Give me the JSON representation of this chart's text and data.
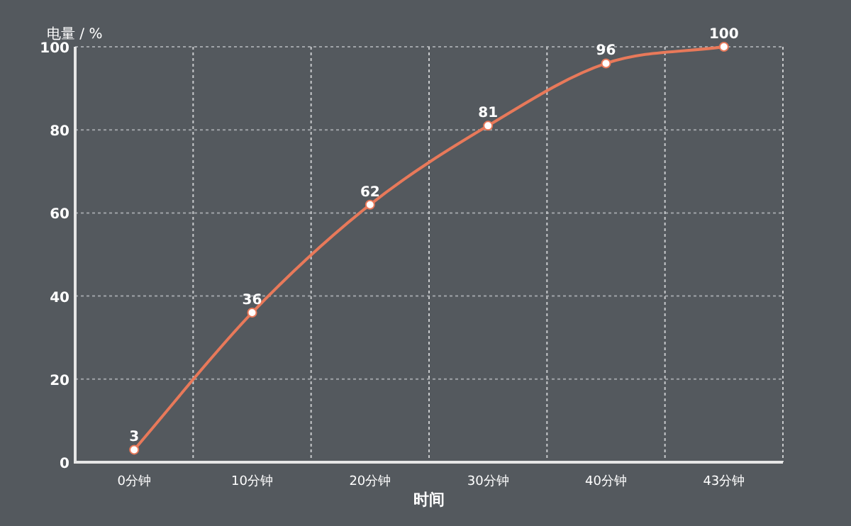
{
  "chart_data": {
    "type": "line",
    "xlabel": "时间",
    "ylabel": "电量 / %",
    "categories": [
      "0分钟",
      "10分钟",
      "20分钟",
      "30分钟",
      "40分钟",
      "43分钟"
    ],
    "series": [
      {
        "color": "#e8795a",
        "values": [
          3,
          36,
          62,
          81,
          96,
          100
        ]
      }
    ],
    "ylim": [
      0,
      100
    ],
    "yticks": [
      0,
      20,
      40,
      60,
      80,
      100
    ],
    "grid": true,
    "marker": "circle",
    "line_style": "solid",
    "data_labels": true
  }
}
